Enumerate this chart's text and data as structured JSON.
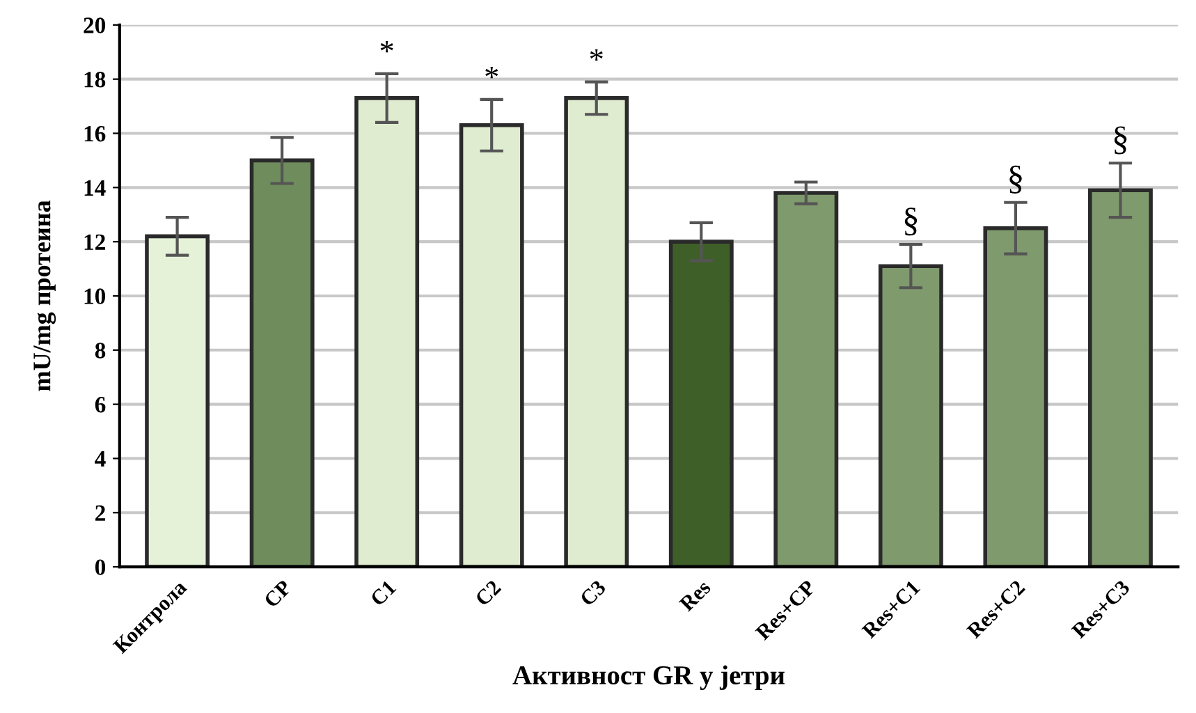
{
  "chart_data": {
    "type": "bar",
    "xlabel": "Активност GR у јетри",
    "ylabel": "mU/mg протеина",
    "categories": [
      "Контрола",
      "CP",
      "C1",
      "C2",
      "C3",
      "Res",
      "Res+CP",
      "Res+C1",
      "Res+C2",
      "Res+C3"
    ],
    "values": [
      12.2,
      15.0,
      17.3,
      16.3,
      17.3,
      12.0,
      13.8,
      11.1,
      12.5,
      13.9
    ],
    "errors": [
      0.7,
      0.85,
      0.9,
      0.95,
      0.6,
      0.7,
      0.4,
      0.8,
      0.95,
      1.0
    ],
    "colors": [
      "#e6f2d8",
      "#6f8c5c",
      "#dfecd0",
      "#dfecd0",
      "#dfecd0",
      "#3f5f28",
      "#7f9a6c",
      "#7f9a6c",
      "#7f9a6c",
      "#7f9a6c"
    ],
    "ylim": [
      0,
      20
    ],
    "yticks": [
      0,
      2,
      4,
      6,
      8,
      10,
      12,
      14,
      16,
      18,
      20
    ],
    "grid": "y",
    "annotations": [
      {
        "text": "*",
        "x": "C1",
        "y": 17.3
      },
      {
        "text": "*",
        "x": "C2",
        "y": 16.3
      },
      {
        "text": "*",
        "x": "C3",
        "y": 17.3
      },
      {
        "text": "§",
        "x": "Res+C1",
        "y": 11.1
      },
      {
        "text": "§",
        "x": "Res+C2",
        "y": 12.5
      },
      {
        "text": "§",
        "x": "Res+C3",
        "y": 13.9
      }
    ]
  }
}
